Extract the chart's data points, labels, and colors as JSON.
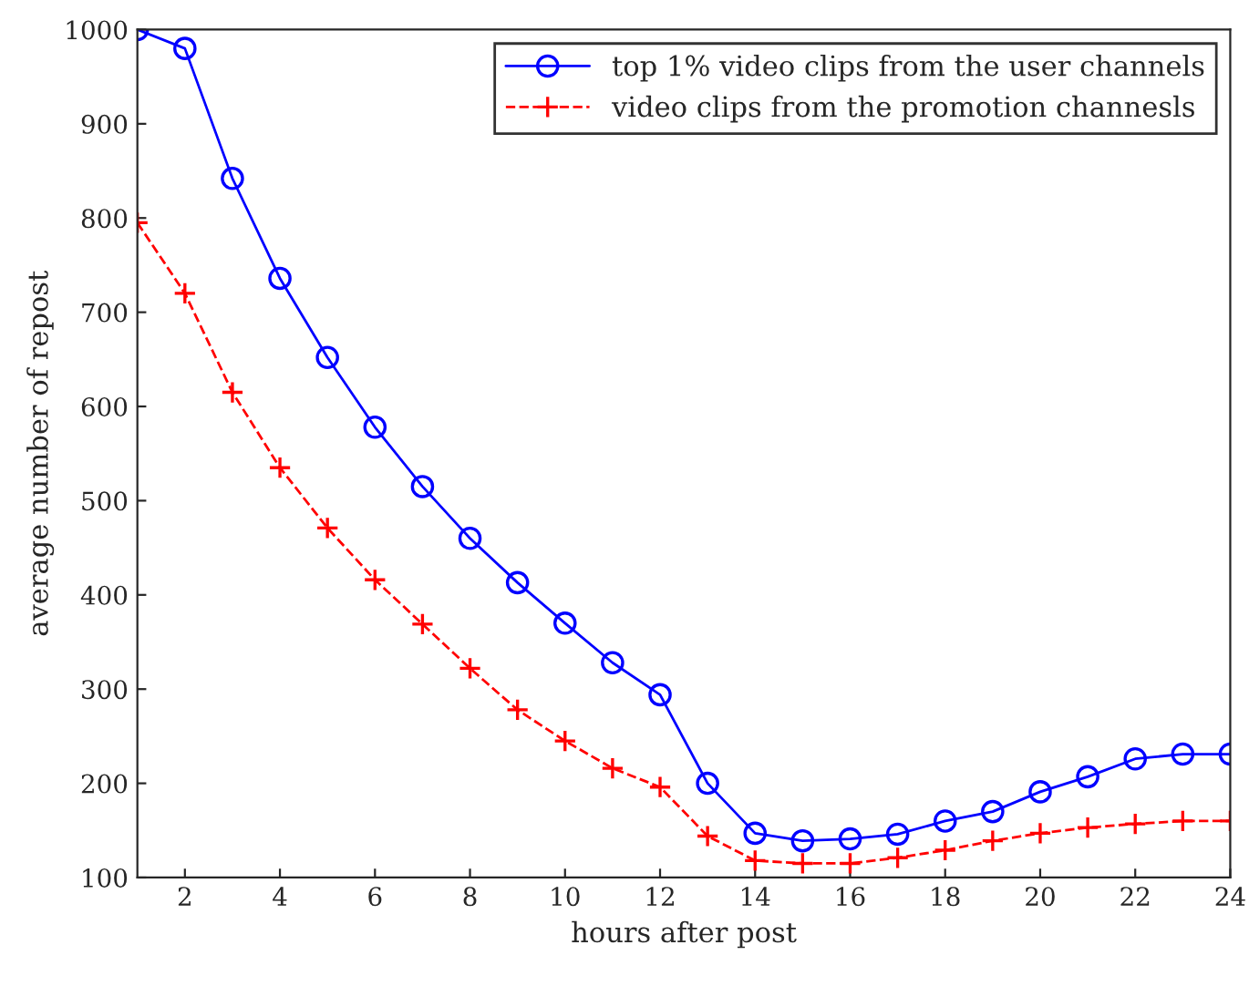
{
  "chart_data": {
    "type": "line",
    "xlabel": "hours after post",
    "ylabel": "average number of repost",
    "x": [
      1,
      2,
      3,
      4,
      5,
      6,
      7,
      8,
      9,
      10,
      11,
      12,
      13,
      14,
      15,
      16,
      17,
      18,
      19,
      20,
      21,
      22,
      23,
      24
    ],
    "series": [
      {
        "name": "top 1% video clips from the user channels",
        "color": "#0000ff",
        "marker": "circle",
        "line_style": "solid",
        "values": [
          1000,
          980,
          842,
          736,
          652,
          578,
          515,
          460,
          413,
          370,
          328,
          294,
          200,
          147,
          139,
          141,
          146,
          160,
          170,
          191,
          207,
          226,
          231,
          231
        ]
      },
      {
        "name": "video clips from the promotion channesls",
        "color": "#ff0000",
        "marker": "cross",
        "line_style": "dashed",
        "values": [
          795,
          720,
          615,
          535,
          471,
          416,
          369,
          322,
          278,
          245,
          216,
          196,
          144,
          118,
          115,
          115,
          121,
          129,
          139,
          147,
          153,
          157,
          160,
          160
        ]
      }
    ],
    "xlim": [
      1,
      24
    ],
    "xticks": [
      2,
      4,
      6,
      8,
      10,
      12,
      14,
      16,
      18,
      20,
      22,
      24
    ],
    "ylim": [
      100,
      1000
    ],
    "yticks": [
      100,
      200,
      300,
      400,
      500,
      600,
      700,
      800,
      900,
      1000
    ],
    "grid": false,
    "legend": "top right"
  }
}
